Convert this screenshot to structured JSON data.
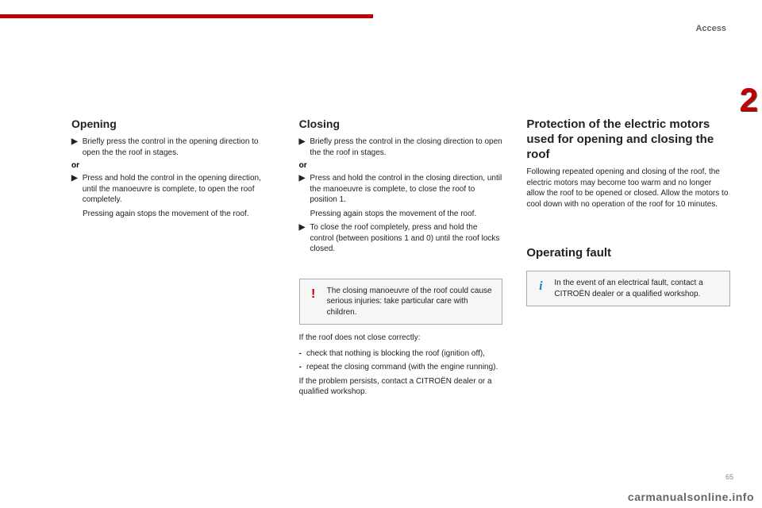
{
  "colors": {
    "accent_red": "#c00000",
    "text": "#222222",
    "muted": "#666666",
    "callout_bg": "#f6f6f6",
    "callout_border": "#aaaaaa",
    "info_icon": "#1e7fb8"
  },
  "header": {
    "section_label": "Access",
    "chapter_number": "2"
  },
  "col_opening": {
    "title": "Opening",
    "b1": "Briefly press the control in the opening direction to open the the roof in stages.",
    "or": "or",
    "b2": "Press and hold the control in the opening direction, until the manoeuvre is complete, to open the roof completely.",
    "b2_cont": "Pressing again stops the movement of the roof."
  },
  "col_closing": {
    "title": "Closing",
    "b1": "Briefly press the control in the closing direction to open the the roof in stages.",
    "or": "or",
    "b2": "Press and hold the control in the closing direction, until the manoeuvre is complete, to close the roof to position 1.",
    "b2_cont": "Pressing again stops the movement of the roof.",
    "b3": "To close the roof completely, press and hold the control (between positions 1 and 0) until the roof locks closed.",
    "warn": "The closing manoeuvre of the roof could cause serious injuries: take particular care with children.",
    "after1": "If the roof does not close correctly:",
    "after_b1": "check that nothing is blocking the roof (ignition off),",
    "after_b2": "repeat the closing command (with the engine running).",
    "after2": "If the problem persists, contact a CITROËN dealer or a qualified workshop."
  },
  "col_right": {
    "protection_title": "Protection of the electric motors used for opening and closing the roof",
    "protection_body": "Following repeated opening and closing of the roof, the electric motors may become too warm and no longer allow the roof to be opened or closed. Allow the motors to cool down with no operation of the roof for 10 minutes.",
    "fault_title": "Operating fault",
    "fault_info": "In the event of an electrical fault, contact a CITROËN dealer or a qualified workshop."
  },
  "footer": {
    "url": "carmanualsonline.info",
    "page": "65"
  },
  "markers": {
    "arrow": "▶",
    "dash": "-",
    "bang": "!",
    "info": "i"
  }
}
